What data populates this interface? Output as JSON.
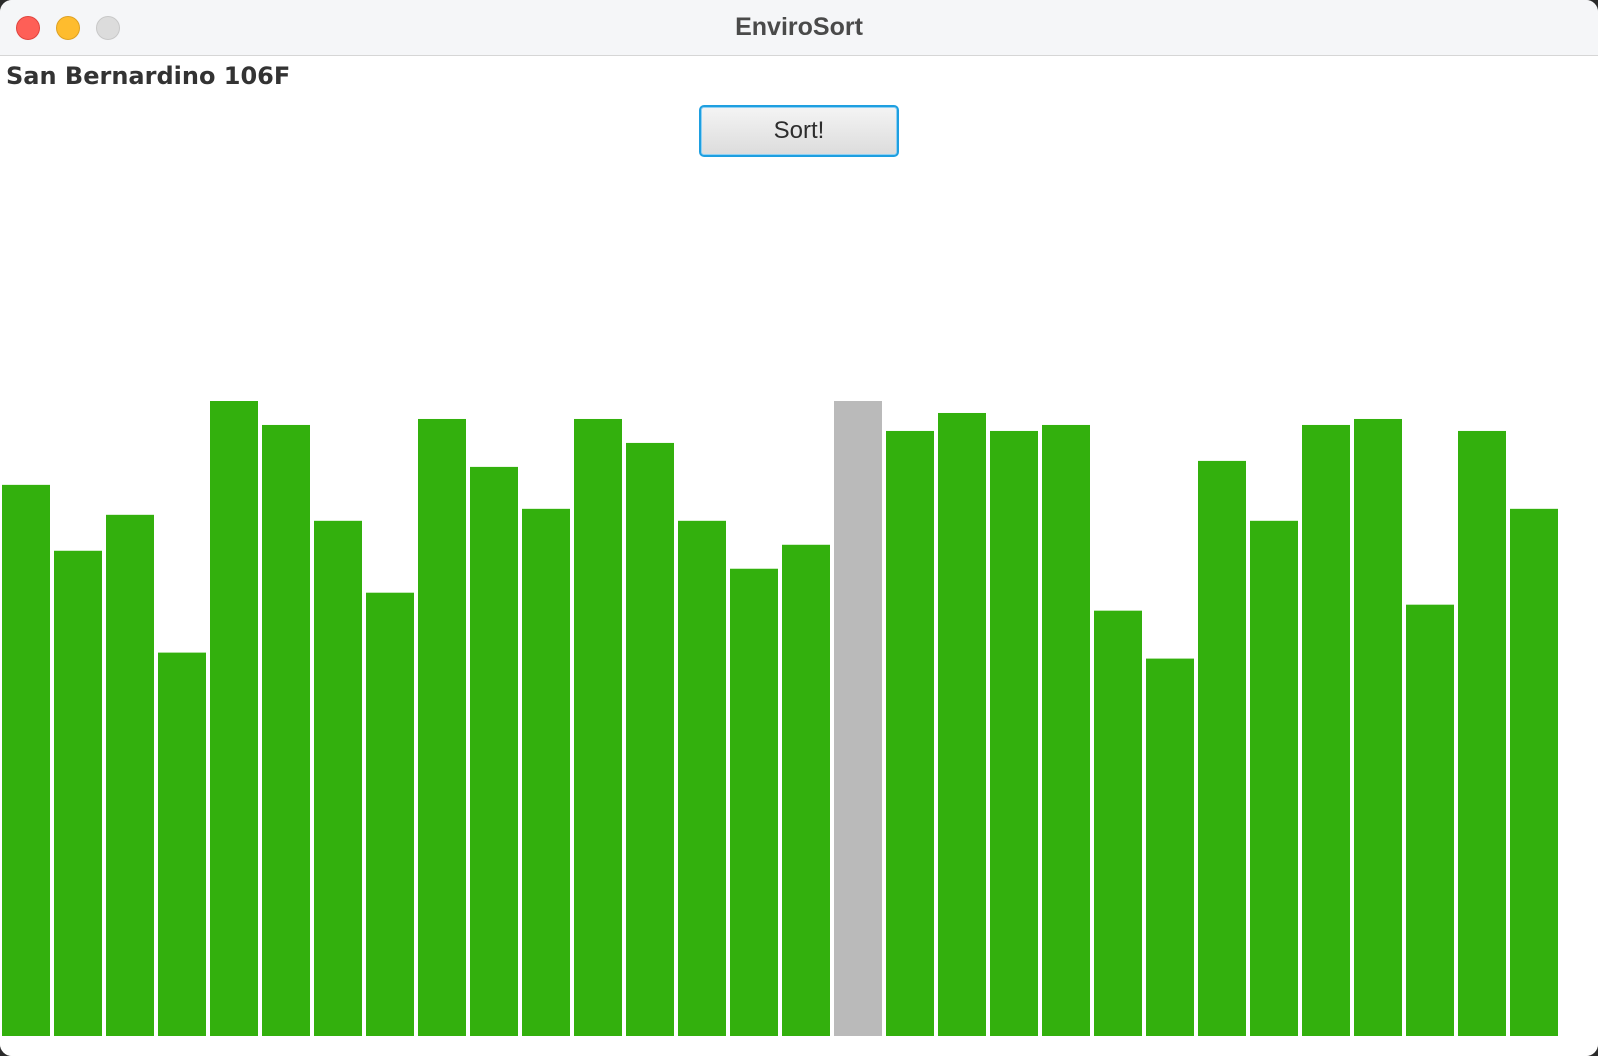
{
  "window": {
    "title": "EnviroSort"
  },
  "header": {
    "city_label": "San Bernardino 106F",
    "sort_button_label": "Sort!"
  },
  "colors": {
    "bar_default": "#33b00d",
    "bar_highlight": "#bababa"
  },
  "chart_data": {
    "type": "bar",
    "ylim": [
      0,
      106
    ],
    "highlight_index": 16,
    "values": [
      92,
      81,
      87,
      64,
      106,
      102,
      86,
      74,
      103,
      95,
      88,
      103,
      99,
      86,
      78,
      82,
      106,
      101,
      104,
      101,
      102,
      71,
      63,
      96,
      86,
      102,
      103,
      72,
      101,
      88
    ]
  }
}
